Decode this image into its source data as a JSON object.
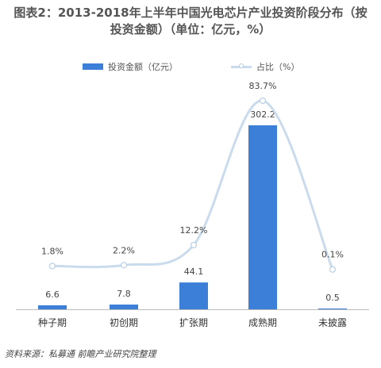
{
  "title_line1": "图表2：2013-2018年上半年中国光电芯片产业投资阶段分布（按",
  "title_line2": "投资金额）（单位：亿元，%）",
  "legend": {
    "bar_label": "投资金额（亿元）",
    "line_label": "占比（%）"
  },
  "source": "资料来源：私募通   前瞻产业研究院整理",
  "chart_data": {
    "type": "bar",
    "title": "图表2：2013-2018年上半年中国光电芯片产业投资阶段分布（按投资金额）（单位：亿元，%）",
    "categories": [
      "种子期",
      "初创期",
      "扩张期",
      "成熟期",
      "未披露"
    ],
    "series": [
      {
        "name": "投资金额（亿元）",
        "type": "bar",
        "values": [
          6.6,
          7.8,
          44.1,
          302.2,
          0.5
        ],
        "labels": [
          "6.6",
          "7.8",
          "44.1",
          "302.2",
          "0.5"
        ]
      },
      {
        "name": "占比（%）",
        "type": "line",
        "values": [
          1.8,
          2.2,
          12.2,
          83.7,
          0.1
        ],
        "labels": [
          "1.8%",
          "2.2%",
          "12.2%",
          "83.7%",
          "0.1%"
        ]
      }
    ],
    "legend_position": "top",
    "grid": false,
    "colors": {
      "bar": "#3b7fd9",
      "line": "#c9dbec",
      "marker_stroke": "#b9cfe4",
      "axis": "#bbbbbb"
    }
  }
}
